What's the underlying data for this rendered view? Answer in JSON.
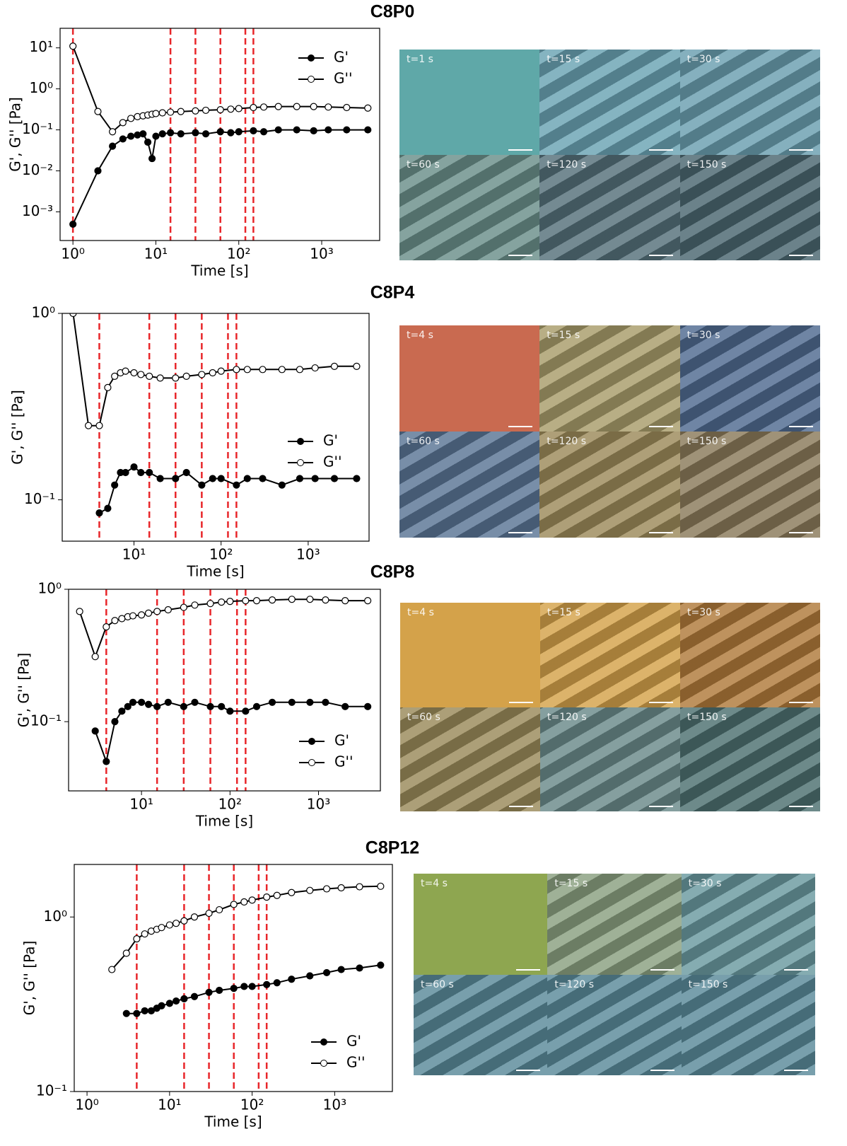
{
  "chart_data": [
    {
      "type": "line",
      "title": "C8P0",
      "x_label": "Time [s]",
      "y_label": "G', G'' [Pa]",
      "log_x": true,
      "log_y": true,
      "xlim": [
        0.7,
        5000
      ],
      "ylim": [
        0.0002,
        30
      ],
      "xticks": [
        {
          "value": 1,
          "label": "10⁰"
        },
        {
          "value": 10,
          "label": "10¹"
        },
        {
          "value": 100,
          "label": "10²"
        },
        {
          "value": 1000,
          "label": "10³"
        }
      ],
      "yticks": [
        {
          "value": 0.001,
          "label": "10⁻³"
        },
        {
          "value": 0.01,
          "label": "10⁻²"
        },
        {
          "value": 0.1,
          "label": "10⁻¹"
        },
        {
          "value": 1,
          "label": "10⁰"
        },
        {
          "value": 10,
          "label": "10¹"
        }
      ],
      "vlines": [
        1,
        15,
        30,
        60,
        120,
        150
      ],
      "vline_color": "#e8262a",
      "legend_loc": "upper right",
      "x": [
        1,
        2,
        3,
        4,
        5,
        6,
        7,
        8,
        9,
        10,
        12,
        15,
        20,
        30,
        40,
        60,
        80,
        100,
        150,
        200,
        300,
        500,
        800,
        1200,
        2000,
        3600
      ],
      "series": [
        {
          "name": "G'",
          "color": "#000000",
          "marker": "filled",
          "values": [
            0.0005,
            0.01,
            0.04,
            0.06,
            0.07,
            0.075,
            0.08,
            0.05,
            0.02,
            0.07,
            0.08,
            0.085,
            0.08,
            0.085,
            0.08,
            0.09,
            0.085,
            0.09,
            0.095,
            0.09,
            0.1,
            0.1,
            0.095,
            0.1,
            0.1,
            0.1
          ]
        },
        {
          "name": "G''",
          "color": "#000000",
          "marker": "open",
          "values": [
            11,
            0.28,
            0.09,
            0.15,
            0.19,
            0.21,
            0.22,
            0.23,
            0.24,
            0.25,
            0.26,
            0.27,
            0.28,
            0.29,
            0.3,
            0.31,
            0.32,
            0.33,
            0.35,
            0.36,
            0.37,
            0.37,
            0.37,
            0.36,
            0.35,
            0.34
          ]
        }
      ]
    },
    {
      "type": "line",
      "title": "C8P4",
      "x_label": "Time [s]",
      "y_label": "G', G'' [Pa]",
      "log_x": true,
      "log_y": true,
      "xlim": [
        1.5,
        5000
      ],
      "ylim": [
        0.06,
        1
      ],
      "xticks": [
        {
          "value": 10,
          "label": "10¹"
        },
        {
          "value": 100,
          "label": "10²"
        },
        {
          "value": 1000,
          "label": "10³"
        }
      ],
      "yticks": [
        {
          "value": 0.1,
          "label": "10⁻¹"
        },
        {
          "value": 1,
          "label": "10⁰"
        }
      ],
      "vlines": [
        4,
        15,
        30,
        60,
        120,
        150
      ],
      "vline_color": "#e8262a",
      "legend_loc": "center right",
      "x": [
        2,
        3,
        4,
        5,
        6,
        7,
        8,
        10,
        12,
        15,
        20,
        30,
        40,
        60,
        80,
        100,
        150,
        200,
        300,
        500,
        800,
        1200,
        2000,
        3600
      ],
      "series": [
        {
          "name": "G'",
          "color": "#000000",
          "marker": "filled",
          "values": [
            null,
            null,
            0.085,
            0.09,
            0.12,
            0.14,
            0.14,
            0.15,
            0.14,
            0.14,
            0.13,
            0.13,
            0.14,
            0.12,
            0.13,
            0.13,
            0.12,
            0.13,
            0.13,
            0.12,
            0.13,
            0.13,
            0.13,
            0.13
          ]
        },
        {
          "name": "G''",
          "color": "#000000",
          "marker": "open",
          "values": [
            1.0,
            0.25,
            0.25,
            0.4,
            0.46,
            0.48,
            0.49,
            0.48,
            0.47,
            0.46,
            0.45,
            0.45,
            0.46,
            0.47,
            0.48,
            0.49,
            0.5,
            0.5,
            0.5,
            0.5,
            0.5,
            0.51,
            0.52,
            0.52
          ]
        }
      ]
    },
    {
      "type": "line",
      "title": "C8P8",
      "x_label": "Time [s]",
      "y_label": "G', G'' [Pa]",
      "log_x": true,
      "log_y": true,
      "xlim": [
        1.5,
        5000
      ],
      "ylim": [
        0.03,
        1
      ],
      "xticks": [
        {
          "value": 10,
          "label": "10¹"
        },
        {
          "value": 100,
          "label": "10²"
        },
        {
          "value": 1000,
          "label": "10³"
        }
      ],
      "yticks": [
        {
          "value": 0.1,
          "label": "10⁻¹"
        },
        {
          "value": 1,
          "label": "10⁰"
        }
      ],
      "vlines": [
        4,
        15,
        30,
        60,
        120,
        150
      ],
      "vline_color": "#e8262a",
      "legend_loc": "lower right",
      "x": [
        2,
        3,
        4,
        5,
        6,
        7,
        8,
        10,
        12,
        15,
        20,
        30,
        40,
        60,
        80,
        100,
        150,
        200,
        300,
        500,
        800,
        1200,
        2000,
        3600
      ],
      "series": [
        {
          "name": "G'",
          "color": "#000000",
          "marker": "filled",
          "values": [
            null,
            0.085,
            0.05,
            0.1,
            0.12,
            0.13,
            0.14,
            0.14,
            0.135,
            0.13,
            0.14,
            0.13,
            0.14,
            0.13,
            0.13,
            0.12,
            0.12,
            0.13,
            0.14,
            0.14,
            0.14,
            0.14,
            0.13,
            0.13
          ]
        },
        {
          "name": "G''",
          "color": "#000000",
          "marker": "open",
          "values": [
            0.68,
            0.31,
            0.52,
            0.58,
            0.6,
            0.62,
            0.63,
            0.64,
            0.66,
            0.68,
            0.7,
            0.73,
            0.76,
            0.78,
            0.8,
            0.81,
            0.82,
            0.82,
            0.83,
            0.84,
            0.84,
            0.83,
            0.82,
            0.82
          ]
        }
      ]
    },
    {
      "type": "line",
      "title": "C8P12",
      "x_label": "Time [s]",
      "y_label": "G', G'' [Pa]",
      "log_x": true,
      "log_y": true,
      "xlim": [
        0.7,
        5000
      ],
      "ylim": [
        0.1,
        2
      ],
      "xticks": [
        {
          "value": 1,
          "label": "10⁰"
        },
        {
          "value": 10,
          "label": "10¹"
        },
        {
          "value": 100,
          "label": "10²"
        },
        {
          "value": 1000,
          "label": "10³"
        }
      ],
      "yticks": [
        {
          "value": 0.1,
          "label": "10⁻¹"
        },
        {
          "value": 1,
          "label": "10⁰"
        }
      ],
      "vlines": [
        4,
        15,
        30,
        60,
        120,
        150
      ],
      "vline_color": "#e8262a",
      "legend_loc": "lower right",
      "x": [
        2,
        3,
        4,
        5,
        6,
        7,
        8,
        10,
        12,
        15,
        20,
        30,
        40,
        60,
        80,
        100,
        150,
        200,
        300,
        500,
        800,
        1200,
        2000,
        3600
      ],
      "series": [
        {
          "name": "G'",
          "color": "#000000",
          "marker": "filled",
          "values": [
            null,
            0.28,
            0.28,
            0.29,
            0.29,
            0.3,
            0.31,
            0.32,
            0.33,
            0.34,
            0.35,
            0.37,
            0.38,
            0.39,
            0.4,
            0.4,
            0.41,
            0.42,
            0.44,
            0.46,
            0.48,
            0.5,
            0.51,
            0.53
          ]
        },
        {
          "name": "G''",
          "color": "#000000",
          "marker": "open",
          "values": [
            0.5,
            0.62,
            0.75,
            0.8,
            0.83,
            0.85,
            0.87,
            0.9,
            0.92,
            0.95,
            1.0,
            1.05,
            1.1,
            1.18,
            1.22,
            1.25,
            1.3,
            1.33,
            1.38,
            1.42,
            1.45,
            1.47,
            1.49,
            1.5
          ]
        }
      ]
    }
  ],
  "micrographs": [
    [
      "t=1 s",
      "t=15 s",
      "t=30 s",
      "t=60 s",
      "t=120 s",
      "t=150 s"
    ],
    [
      "t=4 s",
      "t=15 s",
      "t=30 s",
      "t=60 s",
      "t=120 s",
      "t=150 s"
    ],
    [
      "t=4 s",
      "t=15 s",
      "t=30 s",
      "t=60 s",
      "t=120 s",
      "t=150 s"
    ],
    [
      "t=4 s",
      "t=15 s",
      "t=30 s",
      "t=60 s",
      "t=120 s",
      "t=150 s"
    ]
  ]
}
